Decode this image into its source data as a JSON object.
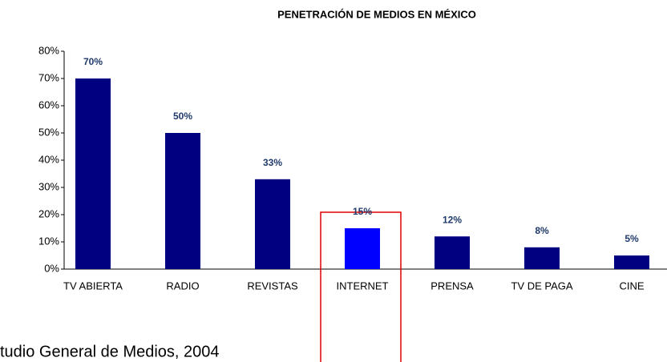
{
  "chart_data": {
    "type": "bar",
    "title": "PENETRACIÓN DE MEDIOS EN MÉXICO",
    "categories": [
      "TV ABIERTA",
      "RADIO",
      "REVISTAS",
      "INTERNET",
      "PRENSA",
      "TV DE PAGA",
      "CINE"
    ],
    "values": [
      70,
      50,
      33,
      15,
      12,
      8,
      5
    ],
    "value_labels": [
      "70%",
      "50%",
      "33%",
      "15%",
      "12%",
      "8%",
      "5%"
    ],
    "colors": [
      "#000080",
      "#000080",
      "#000080",
      "#0000ff",
      "#000080",
      "#000080",
      "#000080"
    ],
    "ylim": [
      0,
      80
    ],
    "yticks": [
      {
        "value": 0,
        "label": "0%"
      },
      {
        "value": 10,
        "label": "10%"
      },
      {
        "value": 20,
        "label": "20%"
      },
      {
        "value": 30,
        "label": "30%"
      },
      {
        "value": 40,
        "label": "40%"
      },
      {
        "value": 50,
        "label": "50%"
      },
      {
        "value": 60,
        "label": "60%"
      },
      {
        "value": 70,
        "label": "70%"
      },
      {
        "value": 80,
        "label": "80%"
      }
    ],
    "grid": false
  },
  "footnote": "tudio General de Medios, 2004"
}
